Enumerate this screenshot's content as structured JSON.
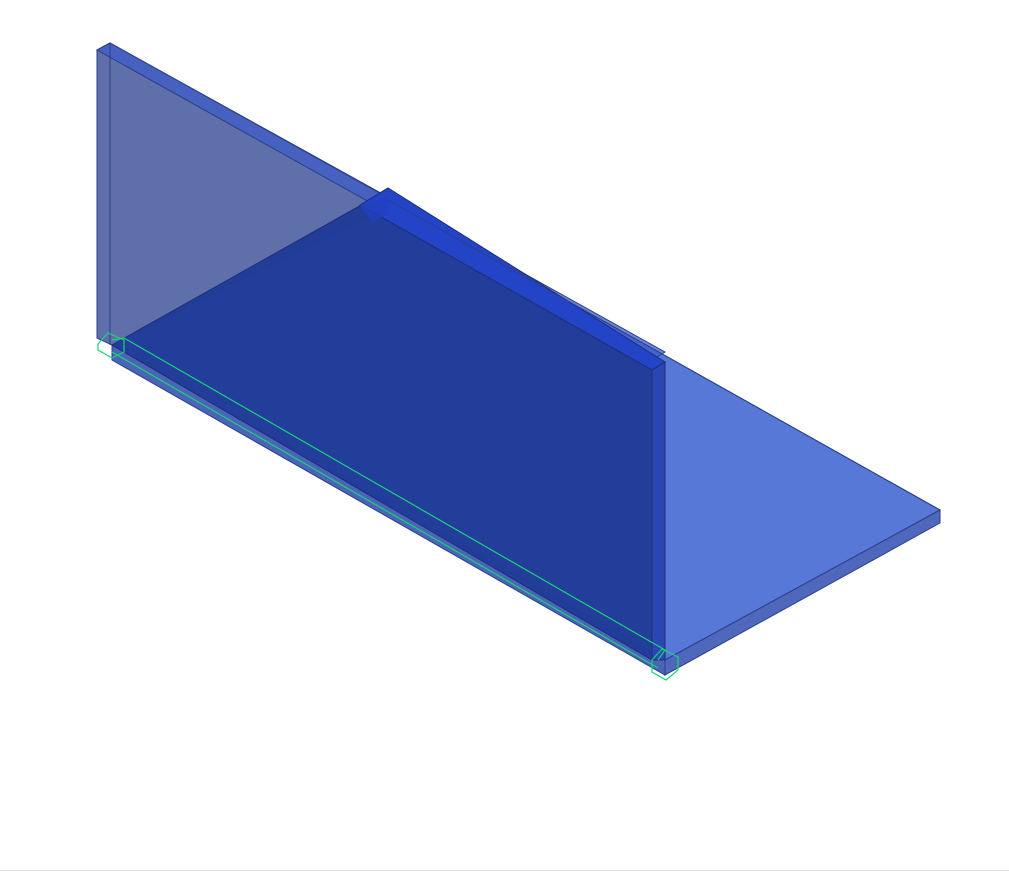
{
  "scene": {
    "view": "isometric",
    "objects": [
      "base-plate",
      "back-vertical-plate",
      "middle-vertical-plate",
      "selected-weld-edge"
    ],
    "colors": {
      "background": "#ffffff",
      "plate_face_light": "#5878d8",
      "plate_face_dark": "#203c98",
      "plate_face_muted": "#5a6aa6",
      "plate_edge": "#2a3f8c",
      "plate_top_edge": "#2e50d0",
      "selection_highlight": "#18d27a",
      "frame_edge": "#e2e2e2"
    }
  }
}
